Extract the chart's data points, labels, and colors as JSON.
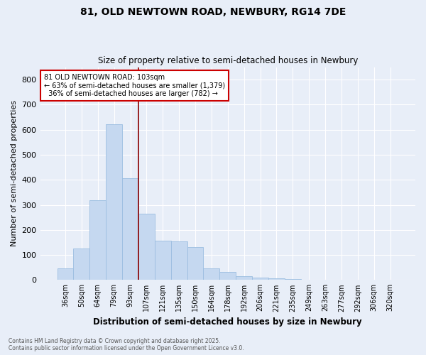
{
  "title_line1": "81, OLD NEWTOWN ROAD, NEWBURY, RG14 7DE",
  "title_line2": "Size of property relative to semi-detached houses in Newbury",
  "xlabel": "Distribution of semi-detached houses by size in Newbury",
  "ylabel": "Number of semi-detached properties",
  "footnote": "Contains HM Land Registry data © Crown copyright and database right 2025.\nContains public sector information licensed under the Open Government Licence v3.0.",
  "categories": [
    "36sqm",
    "50sqm",
    "64sqm",
    "79sqm",
    "93sqm",
    "107sqm",
    "121sqm",
    "135sqm",
    "150sqm",
    "164sqm",
    "178sqm",
    "192sqm",
    "206sqm",
    "221sqm",
    "235sqm",
    "249sqm",
    "263sqm",
    "277sqm",
    "292sqm",
    "306sqm",
    "320sqm"
  ],
  "values": [
    47,
    125,
    318,
    622,
    405,
    265,
    158,
    155,
    130,
    47,
    32,
    14,
    10,
    6,
    3,
    2,
    1,
    1,
    0,
    1,
    1
  ],
  "bar_color": "#c5d8f0",
  "bar_edge_color": "#9bbde0",
  "background_color": "#e8eef8",
  "grid_color": "#ffffff",
  "vline_color": "#8b0000",
  "annotation_title": "81 OLD NEWTOWN ROAD: 103sqm",
  "annotation_line2": "← 63% of semi-detached houses are smaller (1,379)",
  "annotation_line3": "  36% of semi-detached houses are larger (782) →",
  "annotation_box_color": "white",
  "annotation_box_edge": "#cc0000",
  "ylim": [
    0,
    850
  ],
  "yticks": [
    0,
    100,
    200,
    300,
    400,
    500,
    600,
    700,
    800
  ],
  "vline_index": 5
}
